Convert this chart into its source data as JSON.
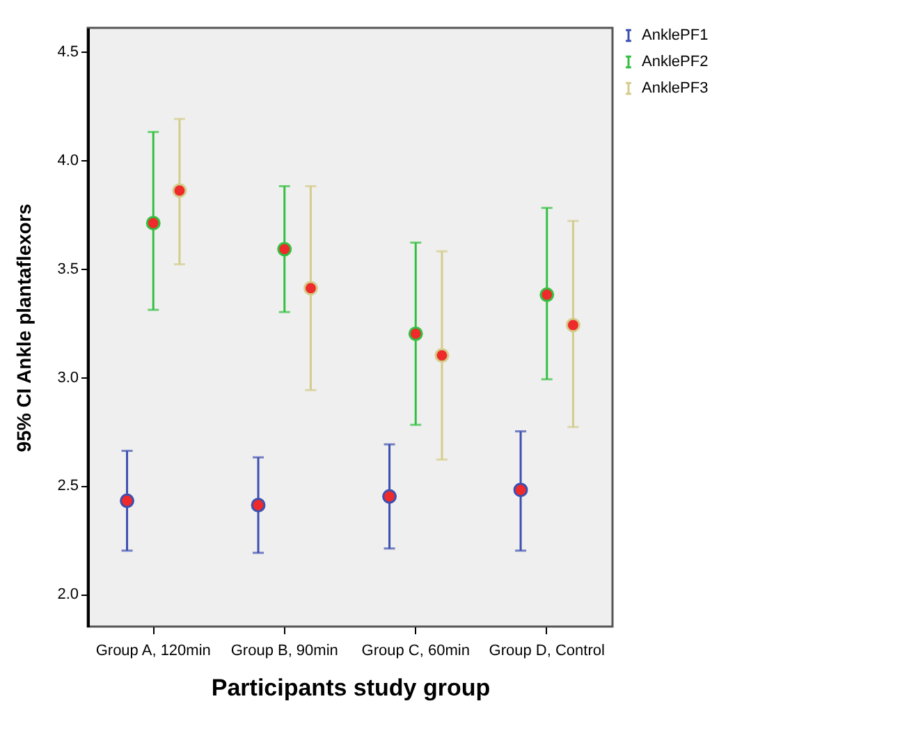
{
  "chart_data": {
    "type": "scatter",
    "xlabel": "Participants study group",
    "ylabel": "95% CI Ankle plantaflexors",
    "categories": [
      "Group A, 120min",
      "Group B, 90min",
      "Group C, 60min",
      "Group D, Control"
    ],
    "series": [
      {
        "name": "AnklePF1",
        "color": "#3d4fb0",
        "values": [
          2.43,
          2.41,
          2.45,
          2.48
        ],
        "errors": [
          [
            2.2,
            2.66
          ],
          [
            2.19,
            2.63
          ],
          [
            2.21,
            2.69
          ],
          [
            2.2,
            2.75
          ]
        ]
      },
      {
        "name": "AnklePF2",
        "color": "#33c040",
        "values": [
          3.71,
          3.59,
          3.2,
          3.38
        ],
        "errors": [
          [
            3.31,
            4.13
          ],
          [
            3.3,
            3.88
          ],
          [
            2.78,
            3.62
          ],
          [
            2.99,
            3.78
          ]
        ]
      },
      {
        "name": "AnklePF3",
        "color": "#d4cc8a",
        "values": [
          3.86,
          3.41,
          3.1,
          3.24
        ],
        "errors": [
          [
            3.52,
            4.19
          ],
          [
            2.94,
            3.88
          ],
          [
            2.62,
            3.58
          ],
          [
            2.77,
            3.72
          ]
        ]
      }
    ],
    "ylim": [
      1.85,
      4.61
    ],
    "yticks": [
      {
        "value": 2,
        "label": "2.0"
      },
      2.5,
      {
        "value": 3,
        "label": "3.0"
      },
      3.5,
      {
        "value": 4,
        "label": "4.0"
      },
      4.5
    ],
    "grid": false,
    "legend": "top right",
    "marker": "circle"
  }
}
